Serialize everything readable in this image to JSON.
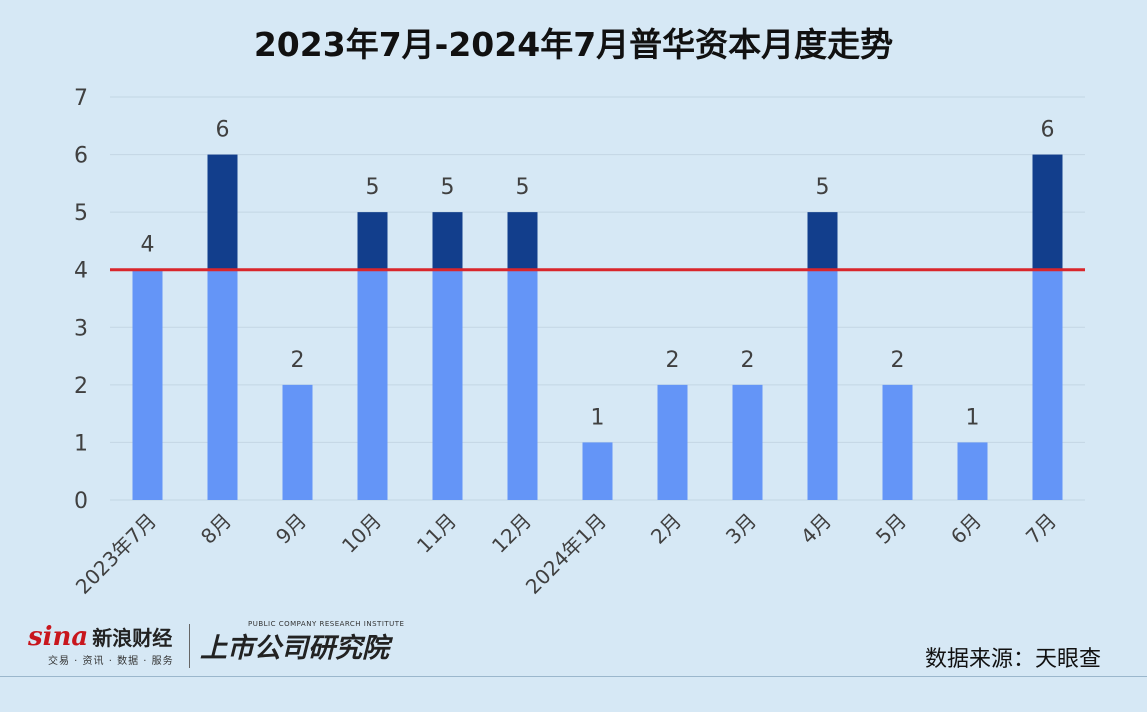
{
  "chart_data": {
    "type": "bar",
    "title": "2023年7月-2024年7月普华资本月度走势",
    "categories": [
      "2023年7月",
      "8月",
      "9月",
      "10月",
      "11月",
      "12月",
      "2024年1月",
      "2月",
      "3月",
      "4月",
      "5月",
      "6月",
      "7月"
    ],
    "values": [
      4,
      6,
      2,
      5,
      5,
      5,
      1,
      2,
      2,
      5,
      2,
      1,
      6
    ],
    "reference_line": 4,
    "ylim": [
      0,
      7
    ],
    "yticks": [
      0,
      1,
      2,
      3,
      4,
      5,
      6,
      7
    ],
    "grid": true,
    "colors": {
      "bar_below": "#6495f7",
      "bar_above": "#123e8c",
      "reference_line": "#d9262b",
      "grid": "#c3d6e4",
      "text": "#404040"
    }
  },
  "footer": {
    "source": "数据来源：天眼查",
    "sina_brand": "sina",
    "sina_brand_cn": "新浪财经",
    "sina_sub": "交易 · 资讯 · 数据 · 服务",
    "institute_en": "PUBLIC COMPANY RESEARCH INSTITUTE",
    "institute_cn": "上市公司研究院"
  }
}
